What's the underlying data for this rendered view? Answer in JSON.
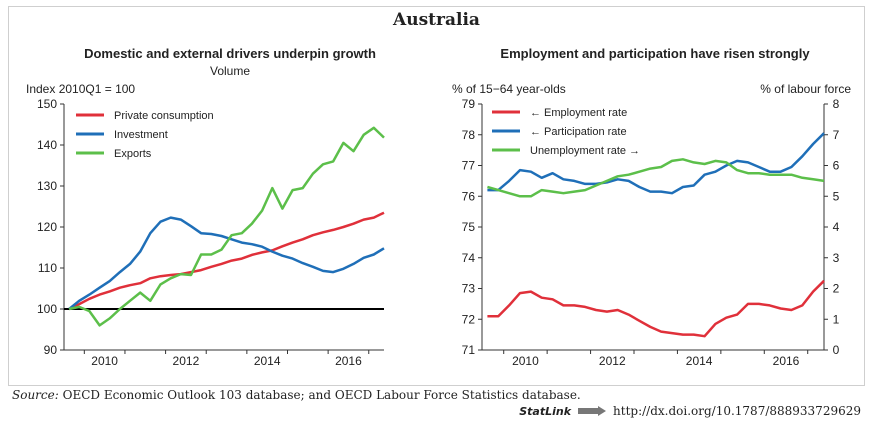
{
  "page_title": "Australia",
  "charts_meta": {
    "left": {
      "title": "Domestic and external drivers underpin growth",
      "subtitle": "Volume",
      "y_unit": "Index 2010Q1 = 100"
    },
    "right": {
      "title": "Employment and participation have risen strongly",
      "y_left_unit": "% of 15−64 year-olds",
      "y_right_unit": "% of labour force"
    }
  },
  "source": {
    "label": "Source:",
    "text": "OECD Economic Outlook 103 database; and OECD Labour Force Statistics database."
  },
  "statlink": {
    "logo": "StatLink",
    "url": "http://dx.doi.org/10.1787/888933729629"
  },
  "colors": {
    "red": "#e0303a",
    "blue": "#1f6fb8",
    "green": "#5cbf4a",
    "black": "#000000"
  },
  "chart_data": [
    {
      "type": "line",
      "title": "Domestic and external drivers underpin growth",
      "subtitle": "Volume",
      "ylabel": "Index 2010Q1 = 100",
      "ylim": [
        90,
        150
      ],
      "yticks": [
        90,
        100,
        110,
        120,
        130,
        140,
        150
      ],
      "xlim": [
        2009.5,
        2017.375
      ],
      "xticks": [
        2010,
        2012,
        2014,
        2016
      ],
      "reference_line": 100,
      "legend_position": "top-left",
      "series": [
        {
          "name": "Private consumption",
          "color": "#e0303a",
          "x": [
            2009.625,
            2009.875,
            2010.125,
            2010.375,
            2010.625,
            2010.875,
            2011.125,
            2011.375,
            2011.625,
            2011.875,
            2012.125,
            2012.375,
            2012.625,
            2012.875,
            2013.125,
            2013.375,
            2013.625,
            2013.875,
            2014.125,
            2014.375,
            2014.625,
            2014.875,
            2015.125,
            2015.375,
            2015.625,
            2015.875,
            2016.125,
            2016.375,
            2016.625,
            2016.875,
            2017.125,
            2017.375
          ],
          "y": [
            100,
            101.2,
            102.5,
            103.5,
            104.3,
            105.2,
            105.8,
            106.3,
            107.5,
            108,
            108.3,
            108.5,
            109,
            109.5,
            110.3,
            111,
            111.8,
            112.3,
            113.2,
            113.8,
            114.3,
            115.3,
            116.2,
            117,
            118,
            118.7,
            119.3,
            120,
            120.8,
            121.8,
            122.3,
            123.5
          ]
        },
        {
          "name": "Investment",
          "color": "#1f6fb8",
          "x": [
            2009.625,
            2009.875,
            2010.125,
            2010.375,
            2010.625,
            2010.875,
            2011.125,
            2011.375,
            2011.625,
            2011.875,
            2012.125,
            2012.375,
            2012.625,
            2012.875,
            2013.125,
            2013.375,
            2013.625,
            2013.875,
            2014.125,
            2014.375,
            2014.625,
            2014.875,
            2015.125,
            2015.375,
            2015.625,
            2015.875,
            2016.125,
            2016.375,
            2016.625,
            2016.875,
            2017.125,
            2017.375
          ],
          "y": [
            100,
            102,
            103.5,
            105.2,
            106.8,
            109,
            111,
            114,
            118.5,
            121.3,
            122.3,
            121.8,
            120.2,
            118.5,
            118.3,
            117.8,
            117,
            116.2,
            115.8,
            115.2,
            114,
            113,
            112.3,
            111.2,
            110.3,
            109.3,
            109,
            109.8,
            111,
            112.5,
            113.3,
            114.8
          ]
        },
        {
          "name": "Exports",
          "color": "#5cbf4a",
          "x": [
            2009.625,
            2009.875,
            2010.125,
            2010.375,
            2010.625,
            2010.875,
            2011.125,
            2011.375,
            2011.625,
            2011.875,
            2012.125,
            2012.375,
            2012.625,
            2012.875,
            2013.125,
            2013.375,
            2013.625,
            2013.875,
            2014.125,
            2014.375,
            2014.625,
            2014.875,
            2015.125,
            2015.375,
            2015.625,
            2015.875,
            2016.125,
            2016.375,
            2016.625,
            2016.875,
            2017.125,
            2017.375
          ],
          "y": [
            100,
            100.5,
            99.5,
            96,
            97.7,
            100,
            102,
            104,
            102,
            106,
            107.5,
            108.5,
            108.3,
            113.3,
            113.3,
            114.5,
            118,
            118.5,
            120.8,
            124,
            129.5,
            124.5,
            129,
            129.5,
            133,
            135.3,
            136,
            140.5,
            138.5,
            142.5,
            144.2,
            141.8
          ]
        }
      ]
    },
    {
      "type": "line",
      "title": "Employment and participation have risen strongly",
      "ylabel_left": "% of 15−64 year-olds",
      "ylabel_right": "% of labour force",
      "ylim_left": [
        71,
        79
      ],
      "yticks_left": [
        71,
        72,
        73,
        74,
        75,
        76,
        77,
        78,
        79
      ],
      "ylim_right": [
        0,
        8
      ],
      "yticks_right": [
        0,
        1,
        2,
        3,
        4,
        5,
        6,
        7,
        8
      ],
      "xlim": [
        2009.5,
        2017.375
      ],
      "xticks": [
        2010,
        2012,
        2014,
        2016
      ],
      "legend_position": "top-left",
      "series": [
        {
          "name": "← Employment rate",
          "axis": "left",
          "color": "#e0303a",
          "x": [
            2009.625,
            2009.875,
            2010.125,
            2010.375,
            2010.625,
            2010.875,
            2011.125,
            2011.375,
            2011.625,
            2011.875,
            2012.125,
            2012.375,
            2012.625,
            2012.875,
            2013.125,
            2013.375,
            2013.625,
            2013.875,
            2014.125,
            2014.375,
            2014.625,
            2014.875,
            2015.125,
            2015.375,
            2015.625,
            2015.875,
            2016.125,
            2016.375,
            2016.625,
            2016.875,
            2017.125,
            2017.375
          ],
          "y": [
            72.1,
            72.1,
            72.45,
            72.85,
            72.9,
            72.7,
            72.65,
            72.45,
            72.45,
            72.4,
            72.3,
            72.25,
            72.3,
            72.15,
            71.95,
            71.75,
            71.6,
            71.55,
            71.5,
            71.5,
            71.45,
            71.85,
            72.05,
            72.15,
            72.5,
            72.5,
            72.45,
            72.35,
            72.3,
            72.45,
            72.9,
            73.25
          ]
        },
        {
          "name": "← Participation rate",
          "axis": "left",
          "color": "#1f6fb8",
          "x": [
            2009.625,
            2009.875,
            2010.125,
            2010.375,
            2010.625,
            2010.875,
            2011.125,
            2011.375,
            2011.625,
            2011.875,
            2012.125,
            2012.375,
            2012.625,
            2012.875,
            2013.125,
            2013.375,
            2013.625,
            2013.875,
            2014.125,
            2014.375,
            2014.625,
            2014.875,
            2015.125,
            2015.375,
            2015.625,
            2015.875,
            2016.125,
            2016.375,
            2016.625,
            2016.875,
            2017.125,
            2017.375
          ],
          "y": [
            76.2,
            76.2,
            76.5,
            76.85,
            76.8,
            76.6,
            76.75,
            76.55,
            76.5,
            76.4,
            76.4,
            76.45,
            76.55,
            76.5,
            76.3,
            76.15,
            76.15,
            76.1,
            76.3,
            76.35,
            76.7,
            76.8,
            77.0,
            77.15,
            77.1,
            76.95,
            76.8,
            76.8,
            76.95,
            77.3,
            77.7,
            78.05
          ]
        },
        {
          "name": "Unemployment rate →",
          "axis": "right",
          "color": "#5cbf4a",
          "x": [
            2009.625,
            2009.875,
            2010.125,
            2010.375,
            2010.625,
            2010.875,
            2011.125,
            2011.375,
            2011.625,
            2011.875,
            2012.125,
            2012.375,
            2012.625,
            2012.875,
            2013.125,
            2013.375,
            2013.625,
            2013.875,
            2014.125,
            2014.375,
            2014.625,
            2014.875,
            2015.125,
            2015.375,
            2015.625,
            2015.875,
            2016.125,
            2016.375,
            2016.625,
            2016.875,
            2017.125,
            2017.375
          ],
          "y": [
            5.3,
            5.2,
            5.1,
            5.0,
            5.0,
            5.2,
            5.15,
            5.1,
            5.15,
            5.2,
            5.35,
            5.5,
            5.65,
            5.7,
            5.8,
            5.9,
            5.95,
            6.15,
            6.2,
            6.1,
            6.05,
            6.15,
            6.1,
            5.85,
            5.75,
            5.75,
            5.7,
            5.7,
            5.7,
            5.6,
            5.55,
            5.5
          ]
        }
      ]
    }
  ]
}
